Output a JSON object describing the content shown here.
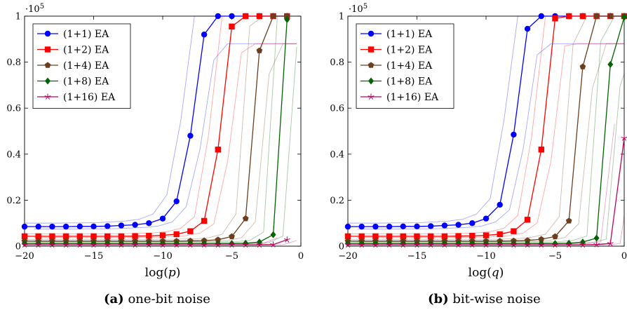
{
  "chart_data": [
    {
      "type": "line",
      "caption_tag": "(a)",
      "caption_text": "one-bit noise",
      "xlabel": "log(p)",
      "ylabel": "",
      "y_exponent": "·10",
      "y_exponent_sup": "5",
      "xlim": [
        -20,
        0
      ],
      "ylim": [
        0,
        1
      ],
      "xticks": [
        -20,
        -15,
        -10,
        -5,
        0
      ],
      "yticks": [
        0,
        0.2,
        0.4,
        0.6,
        0.8,
        1
      ],
      "xtick_labels": [
        "−20",
        "−15",
        "−10",
        "−5",
        "0"
      ],
      "ytick_labels": [
        "0",
        "0.2",
        "0.4",
        "0.6",
        "0.8",
        "1"
      ],
      "legend_position": "top-left",
      "x": [
        -20,
        -19,
        -18,
        -17,
        -16,
        -15,
        -14,
        -13,
        -12,
        -11,
        -10,
        -9,
        -8,
        -7,
        -6,
        -5,
        -4,
        -3,
        -2,
        -1
      ],
      "series": [
        {
          "name": "(1+1) EA",
          "color": "#0000ff",
          "marker": "circle",
          "values": [
            0.085,
            0.085,
            0.085,
            0.085,
            0.086,
            0.086,
            0.087,
            0.09,
            0.093,
            0.1,
            0.12,
            0.195,
            0.48,
            0.92,
            1.0,
            1.0,
            1.0,
            1.0,
            1.0,
            1.0
          ]
        },
        {
          "name": "(1+2) EA",
          "color": "#ff0000",
          "marker": "square",
          "values": [
            0.043,
            0.043,
            0.043,
            0.043,
            0.043,
            0.043,
            0.043,
            0.043,
            0.044,
            0.045,
            0.047,
            0.052,
            0.065,
            0.11,
            0.42,
            0.955,
            1.0,
            1.0,
            1.0,
            1.0
          ]
        },
        {
          "name": "(1+4) EA",
          "color": "#6b3e1e",
          "marker": "pentagon",
          "values": [
            0.022,
            0.022,
            0.022,
            0.022,
            0.022,
            0.022,
            0.022,
            0.022,
            0.022,
            0.022,
            0.022,
            0.022,
            0.023,
            0.024,
            0.028,
            0.042,
            0.12,
            0.85,
            1.0,
            1.0
          ]
        },
        {
          "name": "(1+8) EA",
          "color": "#006400",
          "marker": "diamond",
          "values": [
            0.012,
            0.012,
            0.012,
            0.012,
            0.012,
            0.012,
            0.012,
            0.012,
            0.012,
            0.012,
            0.012,
            0.012,
            0.012,
            0.012,
            0.012,
            0.012,
            0.013,
            0.018,
            0.05,
            0.985
          ]
        },
        {
          "name": "(1+16) EA",
          "color": "#c0005a",
          "marker": "star",
          "values": [
            0.006,
            0.006,
            0.006,
            0.006,
            0.006,
            0.006,
            0.006,
            0.006,
            0.006,
            0.006,
            0.006,
            0.006,
            0.006,
            0.006,
            0.006,
            0.006,
            0.006,
            0.006,
            0.007,
            0.028
          ]
        }
      ]
    },
    {
      "type": "line",
      "caption_tag": "(b)",
      "caption_text": "bit-wise noise",
      "xlabel": "log(q)",
      "ylabel": "",
      "y_exponent": "·10",
      "y_exponent_sup": "5",
      "xlim": [
        -20,
        0
      ],
      "ylim": [
        0,
        1
      ],
      "xticks": [
        -20,
        -15,
        -10,
        -5,
        0
      ],
      "yticks": [
        0,
        0.2,
        0.4,
        0.6,
        0.8,
        1
      ],
      "xtick_labels": [
        "−20",
        "−15",
        "−10",
        "−5",
        "0"
      ],
      "ytick_labels": [
        "0",
        "0.2",
        "0.4",
        "0.6",
        "0.8",
        "1"
      ],
      "legend_position": "top-left",
      "x": [
        -20,
        -19,
        -18,
        -17,
        -16,
        -15,
        -14,
        -13,
        -12,
        -11,
        -10,
        -9,
        -8,
        -7,
        -6,
        -5,
        -4,
        -3,
        -2,
        -1,
        0
      ],
      "series": [
        {
          "name": "(1+1) EA",
          "color": "#0000ff",
          "marker": "circle",
          "values": [
            0.085,
            0.085,
            0.085,
            0.085,
            0.086,
            0.086,
            0.087,
            0.09,
            0.093,
            0.1,
            0.12,
            0.18,
            0.485,
            0.945,
            1.0,
            1.0,
            1.0,
            1.0,
            1.0,
            1.0,
            1.0
          ]
        },
        {
          "name": "(1+2) EA",
          "color": "#ff0000",
          "marker": "square",
          "values": [
            0.043,
            0.043,
            0.043,
            0.043,
            0.043,
            0.043,
            0.043,
            0.043,
            0.044,
            0.045,
            0.047,
            0.052,
            0.065,
            0.115,
            0.42,
            0.99,
            1.0,
            1.0,
            1.0,
            1.0,
            1.0
          ]
        },
        {
          "name": "(1+4) EA",
          "color": "#6b3e1e",
          "marker": "pentagon",
          "values": [
            0.022,
            0.022,
            0.022,
            0.022,
            0.022,
            0.022,
            0.022,
            0.022,
            0.022,
            0.022,
            0.022,
            0.022,
            0.023,
            0.025,
            0.03,
            0.042,
            0.11,
            0.78,
            1.0,
            1.0,
            1.0
          ]
        },
        {
          "name": "(1+8) EA",
          "color": "#006400",
          "marker": "diamond",
          "values": [
            0.012,
            0.012,
            0.012,
            0.012,
            0.012,
            0.012,
            0.012,
            0.012,
            0.012,
            0.012,
            0.012,
            0.012,
            0.012,
            0.012,
            0.012,
            0.012,
            0.013,
            0.018,
            0.035,
            0.79,
            0.995
          ]
        },
        {
          "name": "(1+16) EA",
          "color": "#c0005a",
          "marker": "star",
          "values": [
            0.006,
            0.006,
            0.006,
            0.006,
            0.006,
            0.006,
            0.006,
            0.006,
            0.006,
            0.006,
            0.006,
            0.006,
            0.006,
            0.006,
            0.006,
            0.006,
            0.006,
            0.006,
            0.007,
            0.012,
            0.47
          ]
        }
      ]
    }
  ]
}
